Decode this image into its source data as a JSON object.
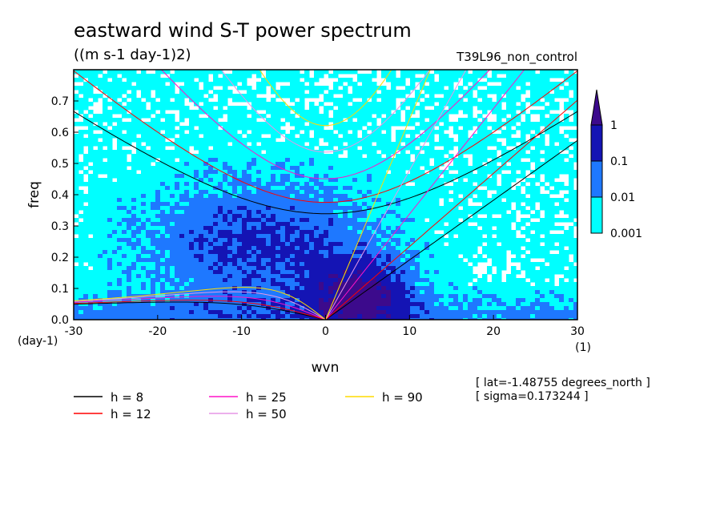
{
  "chart_data": {
    "type": "heatmap",
    "title": "eastward wind S-T power spectrum",
    "subtitle": "((m s-1 day-1)2)",
    "run_label": "T39L96_non_control",
    "xlabel": "wvn",
    "ylabel": "freq",
    "x_unit": "(1)",
    "y_unit": "(day-1)",
    "xlim": [
      -30,
      30
    ],
    "ylim": [
      0,
      0.8
    ],
    "xticks": [
      {
        "value": -30,
        "label": "-30"
      },
      {
        "value": -20,
        "label": "-20"
      },
      {
        "value": -10,
        "label": "-10"
      },
      {
        "value": 0,
        "label": "0"
      },
      {
        "value": 10,
        "label": "10"
      },
      {
        "value": 20,
        "label": "20"
      },
      {
        "value": 30,
        "label": "30"
      }
    ],
    "yticks": [
      {
        "value": 0.0,
        "label": "0.0"
      },
      {
        "value": 0.1,
        "label": "0.1"
      },
      {
        "value": 0.2,
        "label": "0.2"
      },
      {
        "value": 0.3,
        "label": "0.3"
      },
      {
        "value": 0.4,
        "label": "0.4"
      },
      {
        "value": 0.5,
        "label": "0.5"
      },
      {
        "value": 0.6,
        "label": "0.6"
      },
      {
        "value": 0.7,
        "label": "0.7"
      }
    ],
    "levels": [
      {
        "value": "0.001",
        "color": "#00ffff"
      },
      {
        "value": "0.01",
        "color": "#1e78ff"
      },
      {
        "value": "0.1",
        "color": "#1414b4"
      },
      {
        "value": "1",
        "color": "#3c0a8c"
      }
    ],
    "dispersion_curves": [
      {
        "name": "h =  8",
        "h": 8,
        "color": "#000000"
      },
      {
        "name": "h = 12",
        "h": 12,
        "color": "#ff0000"
      },
      {
        "name": "h = 25",
        "h": 25,
        "color": "#ff14c8"
      },
      {
        "name": "h = 50",
        "h": 50,
        "color": "#e696e6"
      },
      {
        "name": "h = 90",
        "h": 90,
        "color": "#ffdc00"
      }
    ],
    "grid": false,
    "legend_position": "bottom"
  },
  "annotations": {
    "lat": "[ lat=-1.48755 degrees_north ]",
    "sigma": "[ sigma=0.173244 ]"
  }
}
